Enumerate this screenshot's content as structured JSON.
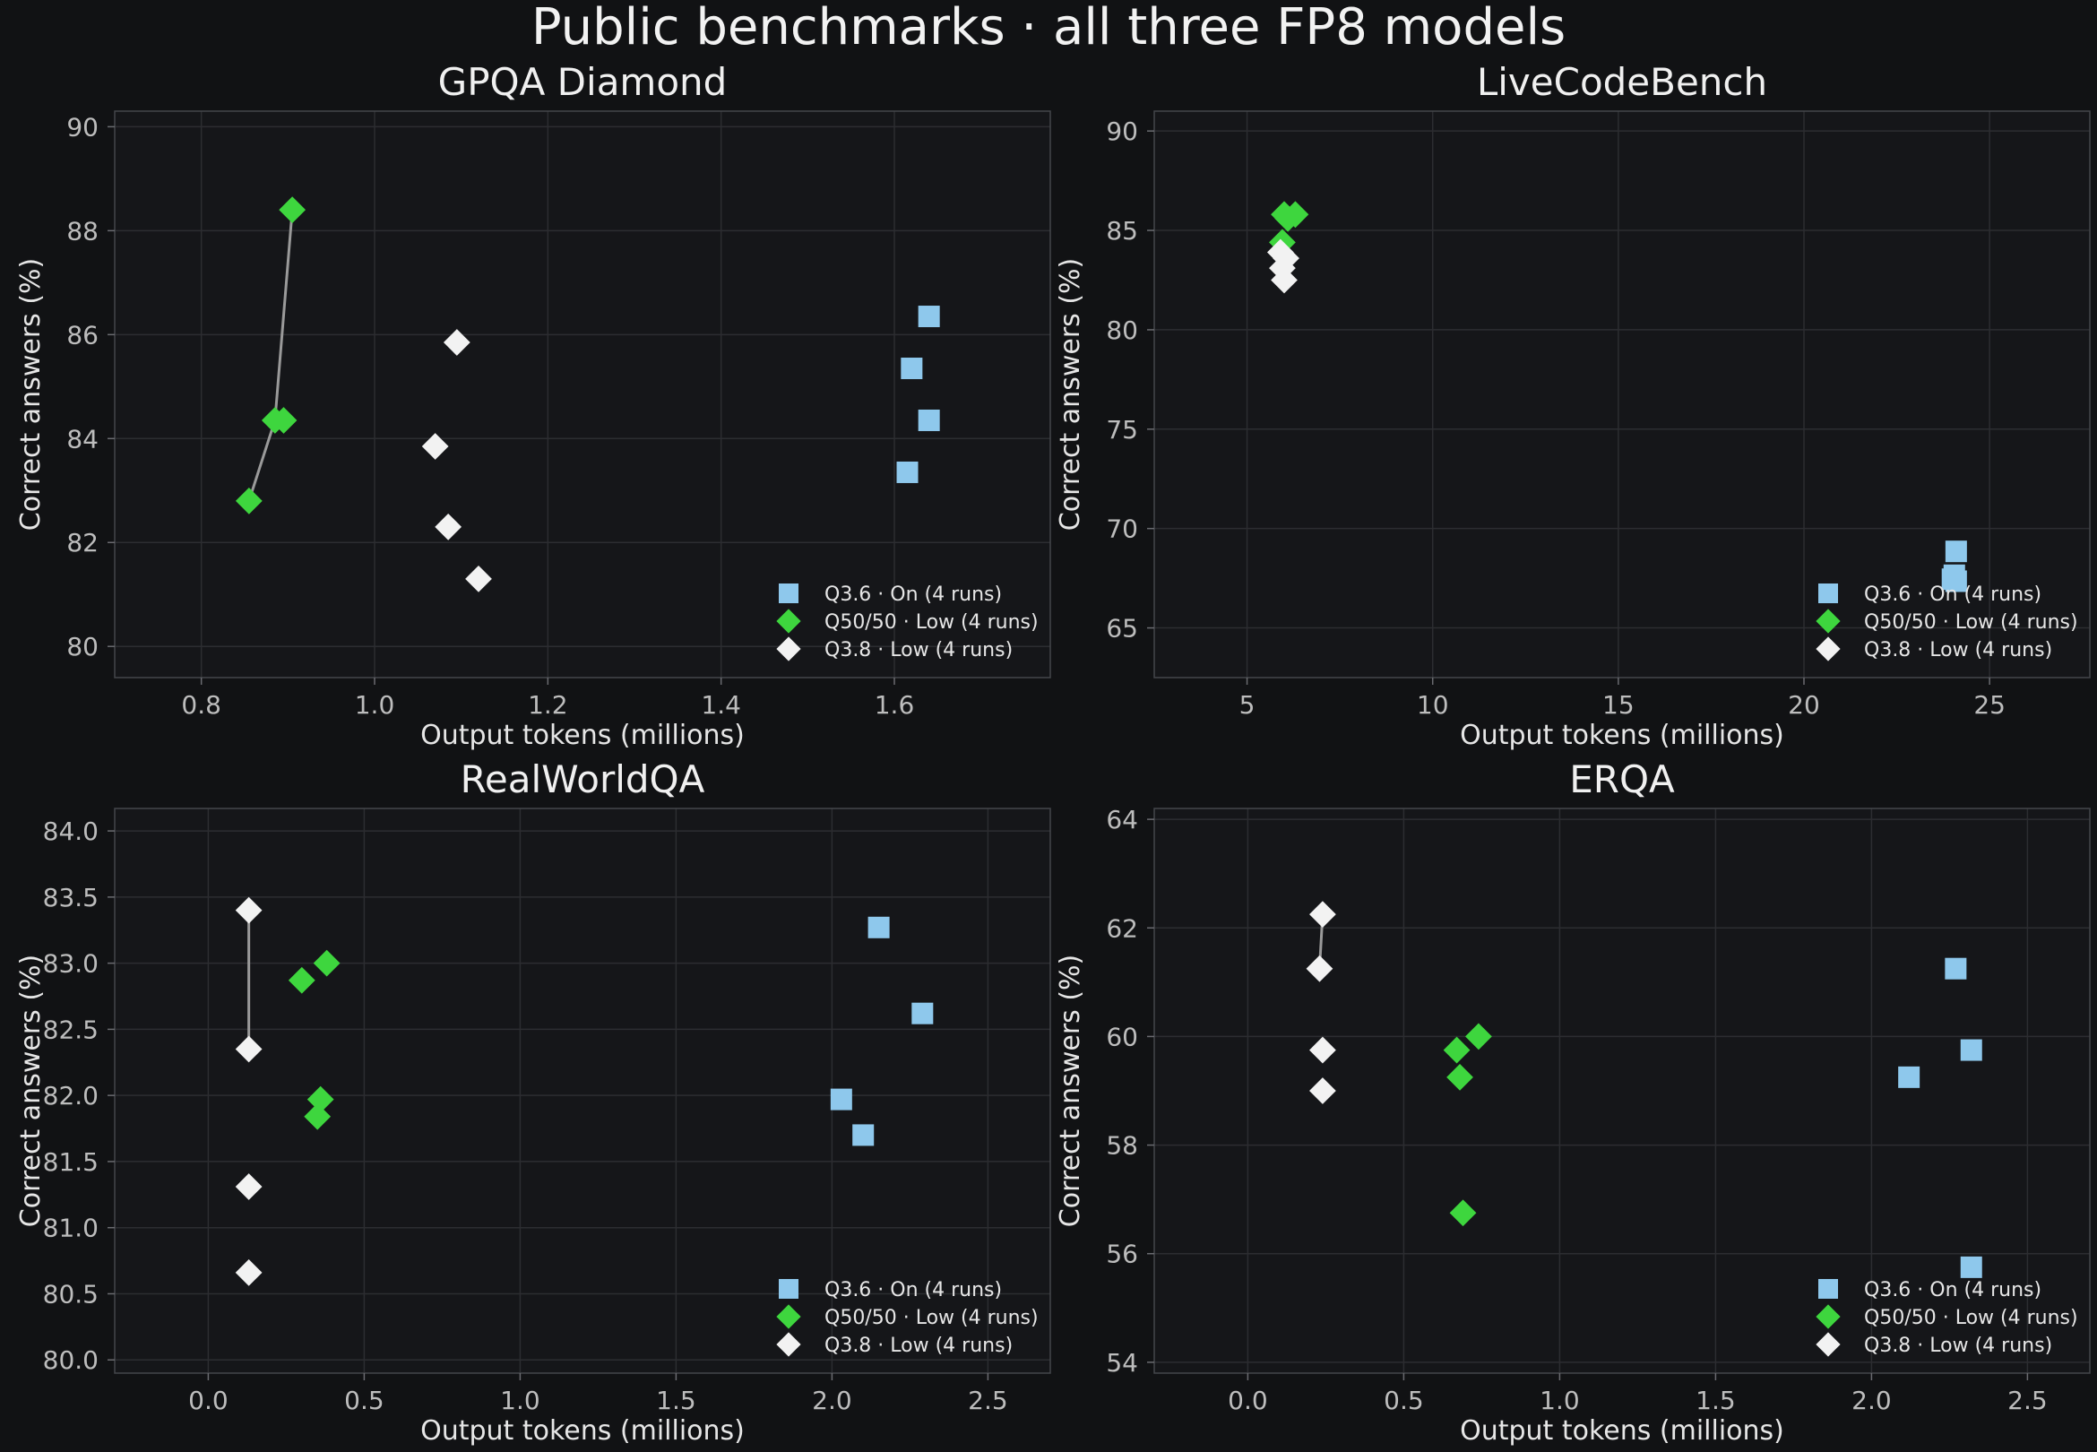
{
  "suptitle": "Public benchmarks · all three FP8 models",
  "colors": {
    "background": "#111214",
    "axes_bg": "#151619",
    "q36": "#8ec8ec",
    "q5050": "#3ed63e",
    "q38": "#f2f2f2",
    "connector": "#9a9a9a"
  },
  "chart_data": [
    {
      "type": "scatter",
      "title": "GPQA Diamond",
      "xlabel": "Output tokens (millions)",
      "ylabel": "Correct answers (%)",
      "xlim": [
        0.7,
        1.78
      ],
      "ylim": [
        79.4,
        90.3
      ],
      "xticks": [
        0.8,
        1.0,
        1.2,
        1.4,
        1.6
      ],
      "yticks": [
        80,
        82,
        84,
        86,
        88,
        90
      ],
      "tick_decimals": [
        1,
        0
      ],
      "grid": true,
      "legend_position": "lower-right",
      "series": [
        {
          "name": "Q3.6 · On (4 runs)",
          "marker": "square",
          "color": "#8ec8ec",
          "points": [
            [
              1.64,
              86.35
            ],
            [
              1.62,
              85.35
            ],
            [
              1.64,
              84.35
            ],
            [
              1.615,
              83.35
            ]
          ]
        },
        {
          "name": "Q50/50 · Low (4 runs)",
          "marker": "diamond",
          "color": "#3ed63e",
          "points": [
            [
              0.905,
              88.4
            ],
            [
              0.885,
              84.35
            ],
            [
              0.895,
              84.35
            ],
            [
              0.855,
              82.8
            ]
          ]
        },
        {
          "name": "Q3.8 · Low (4 runs)",
          "marker": "diamond",
          "color": "#f2f2f2",
          "points": [
            [
              1.095,
              85.85
            ],
            [
              1.07,
              83.85
            ],
            [
              1.085,
              82.3
            ],
            [
              1.12,
              81.3
            ]
          ]
        }
      ],
      "connector": {
        "color": "#9a9a9a",
        "points": [
          [
            0.855,
            82.8
          ],
          [
            0.885,
            84.35
          ],
          [
            0.905,
            88.4
          ]
        ]
      }
    },
    {
      "type": "scatter",
      "title": "LiveCodeBench",
      "xlabel": "Output tokens (millions)",
      "ylabel": "Correct answers (%)",
      "xlim": [
        2.5,
        27.7
      ],
      "ylim": [
        62.5,
        91.0
      ],
      "xticks": [
        5,
        10,
        15,
        20,
        25
      ],
      "yticks": [
        65,
        70,
        75,
        80,
        85,
        90
      ],
      "tick_decimals": [
        0,
        0
      ],
      "grid": true,
      "legend_position": "lower-right",
      "series": [
        {
          "name": "Q3.6 · On (4 runs)",
          "marker": "square",
          "color": "#8ec8ec",
          "points": [
            [
              24.1,
              68.85
            ],
            [
              24.05,
              67.65
            ],
            [
              24.1,
              67.35
            ],
            [
              24.0,
              67.45
            ]
          ]
        },
        {
          "name": "Q50/50 · Low (4 runs)",
          "marker": "diamond",
          "color": "#3ed63e",
          "points": [
            [
              6.0,
              85.8
            ],
            [
              6.3,
              85.8
            ],
            [
              6.1,
              85.6
            ],
            [
              5.95,
              84.4
            ]
          ]
        },
        {
          "name": "Q3.8 · Low (4 runs)",
          "marker": "diamond",
          "color": "#f2f2f2",
          "points": [
            [
              5.9,
              83.9
            ],
            [
              6.05,
              83.6
            ],
            [
              5.95,
              83.1
            ],
            [
              6.0,
              82.5
            ]
          ]
        }
      ]
    },
    {
      "type": "scatter",
      "title": "RealWorldQA",
      "xlabel": "Output tokens (millions)",
      "ylabel": "Correct answers (%)",
      "xlim": [
        -0.3,
        2.7
      ],
      "ylim": [
        79.9,
        84.17
      ],
      "xticks": [
        0.0,
        0.5,
        1.0,
        1.5,
        2.0,
        2.5
      ],
      "yticks": [
        80.0,
        80.5,
        81.0,
        81.5,
        82.0,
        82.5,
        83.0,
        83.5,
        84.0
      ],
      "tick_decimals": [
        1,
        1
      ],
      "grid": true,
      "legend_position": "lower-right",
      "series": [
        {
          "name": "Q3.6 · On (4 runs)",
          "marker": "square",
          "color": "#8ec8ec",
          "points": [
            [
              2.15,
              83.27
            ],
            [
              2.29,
              82.62
            ],
            [
              2.03,
              81.97
            ],
            [
              2.1,
              81.7
            ]
          ]
        },
        {
          "name": "Q50/50 · Low (4 runs)",
          "marker": "diamond",
          "color": "#3ed63e",
          "points": [
            [
              0.38,
              83.0
            ],
            [
              0.3,
              82.87
            ],
            [
              0.36,
              81.97
            ],
            [
              0.35,
              81.84
            ]
          ]
        },
        {
          "name": "Q3.8 · Low (4 runs)",
          "marker": "diamond",
          "color": "#f2f2f2",
          "points": [
            [
              0.13,
              83.4
            ],
            [
              0.13,
              82.35
            ],
            [
              0.13,
              81.31
            ],
            [
              0.13,
              80.66
            ]
          ]
        }
      ],
      "connector": {
        "color": "#9a9a9a",
        "points": [
          [
            0.13,
            83.4
          ],
          [
            0.13,
            82.35
          ]
        ]
      }
    },
    {
      "type": "scatter",
      "title": "ERQA",
      "xlabel": "Output tokens (millions)",
      "ylabel": "Correct answers (%)",
      "xlim": [
        -0.3,
        2.7
      ],
      "ylim": [
        53.8,
        64.2
      ],
      "xticks": [
        0.0,
        0.5,
        1.0,
        1.5,
        2.0,
        2.5
      ],
      "yticks": [
        54,
        56,
        58,
        60,
        62,
        64
      ],
      "tick_decimals": [
        1,
        0
      ],
      "grid": true,
      "legend_position": "lower-right",
      "series": [
        {
          "name": "Q3.6 · On (4 runs)",
          "marker": "square",
          "color": "#8ec8ec",
          "points": [
            [
              2.27,
              61.25
            ],
            [
              2.32,
              59.75
            ],
            [
              2.12,
              59.25
            ],
            [
              2.32,
              55.75
            ]
          ]
        },
        {
          "name": "Q50/50 · Low (4 runs)",
          "marker": "diamond",
          "color": "#3ed63e",
          "points": [
            [
              0.74,
              60.0
            ],
            [
              0.67,
              59.75
            ],
            [
              0.68,
              59.25
            ],
            [
              0.69,
              56.75
            ]
          ]
        },
        {
          "name": "Q3.8 · Low (4 runs)",
          "marker": "diamond",
          "color": "#f2f2f2",
          "points": [
            [
              0.24,
              62.25
            ],
            [
              0.23,
              61.25
            ],
            [
              0.24,
              59.75
            ],
            [
              0.24,
              59.0
            ]
          ]
        }
      ],
      "connector": {
        "color": "#9a9a9a",
        "points": [
          [
            0.23,
            61.25
          ],
          [
            0.24,
            62.25
          ]
        ]
      }
    }
  ]
}
